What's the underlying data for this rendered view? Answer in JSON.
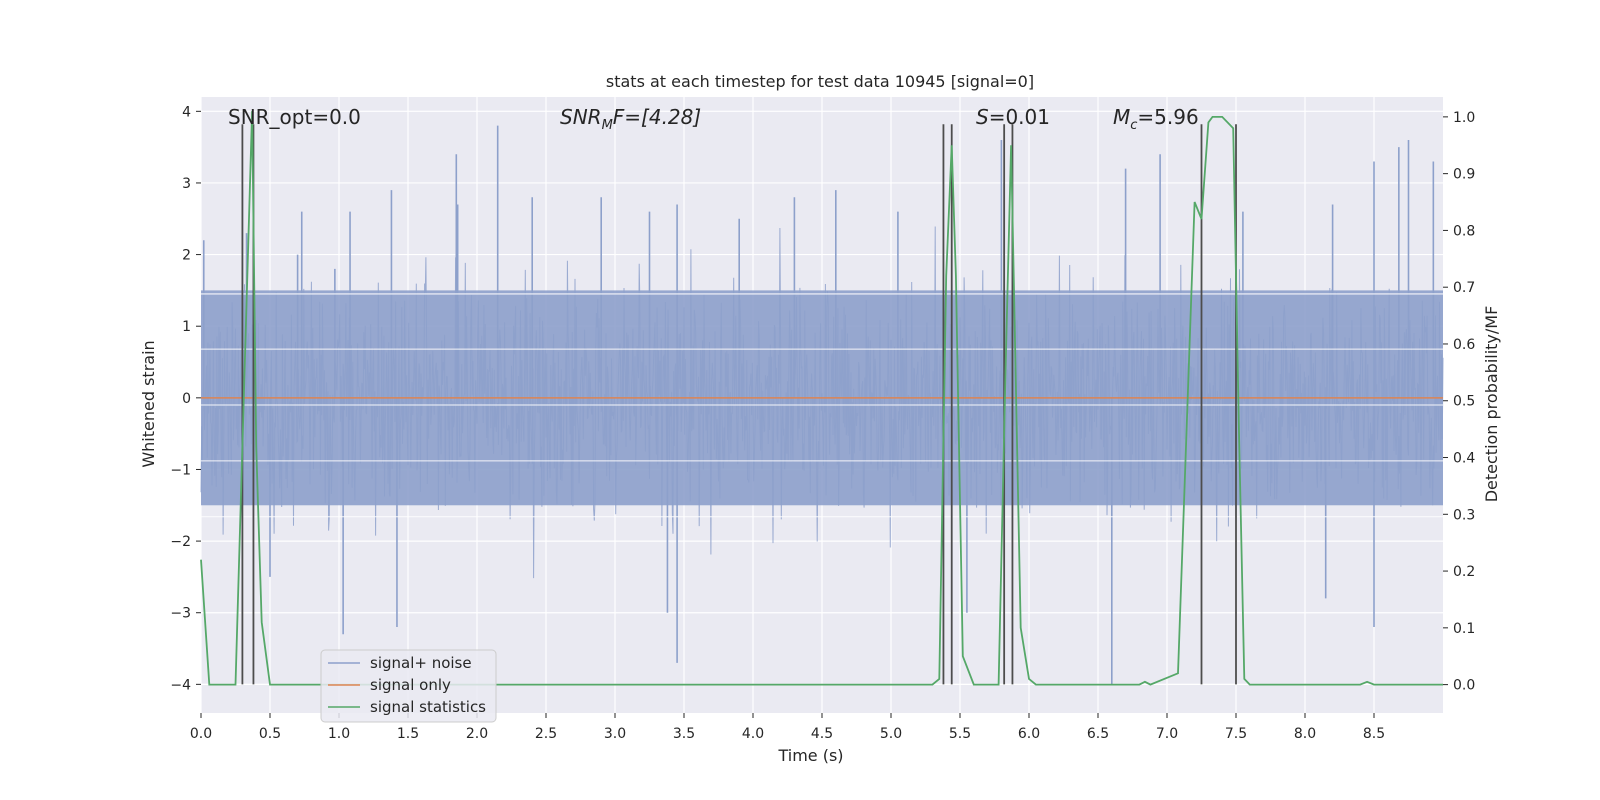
{
  "chart_data": {
    "type": "line",
    "title": "stats at each timestep for test data 10945 [signal=0]",
    "xlabel": "Time (s)",
    "ylabel": "Whitened strain",
    "y2label": "Detection probability/MF",
    "xlim": [
      0.0,
      9.0
    ],
    "ylim": [
      -4.4,
      4.2
    ],
    "y2lim": [
      -0.05,
      1.035
    ],
    "x_ticks": [
      0.0,
      0.5,
      1.0,
      1.5,
      2.0,
      2.5,
      3.0,
      3.5,
      4.0,
      4.5,
      5.0,
      5.5,
      6.0,
      6.5,
      7.0,
      7.5,
      8.0,
      8.5
    ],
    "x_tick_labels": [
      "0.0",
      "0.5",
      "1.0",
      "1.5",
      "2.0",
      "2.5",
      "3.0",
      "3.5",
      "4.0",
      "4.5",
      "5.0",
      "5.5",
      "6.0",
      "6.5",
      "7.0",
      "7.5",
      "8.0",
      "8.5"
    ],
    "y_ticks": [
      4,
      3,
      2,
      1,
      0,
      -1,
      -2,
      -3,
      -4
    ],
    "y_tick_labels": [
      "4",
      "3",
      "2",
      "1",
      "0",
      "−1",
      "−2",
      "−3",
      "−4"
    ],
    "y2_ticks": [
      1.0,
      0.9,
      0.8,
      0.7,
      0.6,
      0.5,
      0.4,
      0.3,
      0.2,
      0.1,
      0.0
    ],
    "y2_tick_labels": [
      "1.0",
      "0.9",
      "0.8",
      "0.7",
      "0.6",
      "0.5",
      "0.4",
      "0.3",
      "0.2",
      "0.1",
      "0.0"
    ],
    "annotations": {
      "snr_opt": "SNR_opt=0.0",
      "snr_mf_main": "SNR",
      "snr_mf_sub": "M",
      "snr_mf_rest": "F=[4.28]",
      "s_main": "S",
      "s_rest": "=0.01",
      "mc_main": "M",
      "mc_sub": "c",
      "mc_rest": "=5.96"
    },
    "legend": {
      "position": "lower-left",
      "entries": [
        "signal+ noise",
        "signal only",
        "signal statistics"
      ]
    },
    "colors": {
      "noise": "#8da0cb",
      "signal": "#dd8452",
      "stats": "#55a868",
      "vline": "#4d4d4d",
      "plot_bg": "#eaeaf2"
    },
    "series": [
      {
        "name": "signal+ noise",
        "noise_duration_s": 9.0,
        "typical_band": [
          -1.5,
          1.5
        ],
        "peak_samples": [
          [
            0.02,
            2.2
          ],
          [
            0.3,
            2.9
          ],
          [
            0.33,
            2.3
          ],
          [
            0.7,
            2.0
          ],
          [
            0.73,
            2.6
          ],
          [
            0.97,
            1.8
          ],
          [
            1.08,
            2.6
          ],
          [
            1.38,
            2.9
          ],
          [
            1.86,
            2.7
          ],
          [
            1.85,
            3.4
          ],
          [
            2.15,
            3.8
          ],
          [
            2.4,
            2.8
          ],
          [
            2.9,
            2.8
          ],
          [
            3.25,
            2.6
          ],
          [
            3.45,
            2.7
          ],
          [
            3.9,
            2.5
          ],
          [
            4.3,
            2.8
          ],
          [
            4.6,
            2.9
          ],
          [
            5.05,
            2.6
          ],
          [
            5.8,
            3.6
          ],
          [
            5.82,
            3.0
          ],
          [
            6.7,
            3.2
          ],
          [
            6.95,
            3.4
          ],
          [
            7.55,
            2.6
          ],
          [
            8.2,
            2.7
          ],
          [
            8.5,
            3.3
          ],
          [
            8.68,
            3.5
          ],
          [
            8.75,
            3.6
          ],
          [
            8.93,
            3.3
          ],
          [
            1.03,
            -3.3
          ],
          [
            1.42,
            -3.2
          ],
          [
            3.45,
            -3.7
          ],
          [
            3.38,
            -3.0
          ],
          [
            5.55,
            -3.0
          ],
          [
            6.6,
            -4.0
          ],
          [
            8.5,
            -3.2
          ],
          [
            8.15,
            -2.8
          ],
          [
            0.5,
            -2.5
          ]
        ]
      },
      {
        "name": "signal only",
        "values": [
          [
            0.0,
            0.0
          ],
          [
            9.0,
            0.0
          ]
        ]
      },
      {
        "name": "signal statistics",
        "x": [
          0.0,
          0.06,
          0.25,
          0.3,
          0.37,
          0.4,
          0.44,
          0.5,
          0.6,
          5.3,
          5.35,
          5.4,
          5.44,
          5.47,
          5.52,
          5.6,
          5.78,
          5.83,
          5.87,
          5.94,
          6.0,
          6.05,
          6.8,
          6.84,
          6.88,
          7.08,
          7.2,
          7.25,
          7.3,
          7.33,
          7.4,
          7.48,
          7.52,
          7.56,
          7.6,
          8.4,
          8.45,
          8.5,
          9.0
        ],
        "y": [
          0.22,
          0.0,
          0.0,
          0.42,
          1.01,
          0.42,
          0.11,
          0.0,
          0.0,
          0.0,
          0.01,
          0.72,
          0.95,
          0.72,
          0.05,
          0.0,
          0.0,
          0.55,
          0.95,
          0.1,
          0.01,
          0.0,
          0.0,
          0.005,
          0.0,
          0.02,
          0.85,
          0.82,
          0.99,
          1.0,
          1.0,
          0.98,
          0.46,
          0.01,
          0.0,
          0.0,
          0.005,
          0.0,
          0.0
        ]
      }
    ],
    "vertical_lines": [
      0.3,
      0.38,
      5.38,
      5.44,
      5.82,
      5.88,
      7.25,
      7.5
    ],
    "vertical_line_range": [
      -4.0,
      3.82
    ]
  }
}
